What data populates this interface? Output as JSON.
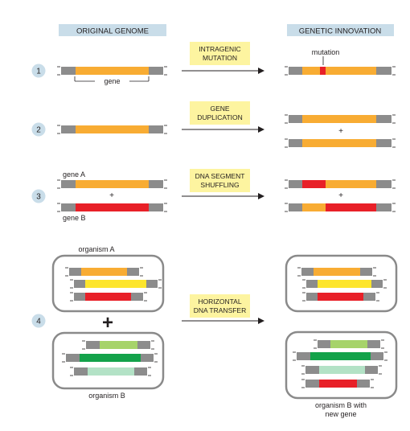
{
  "headers": {
    "original": "ORIGINAL GENOME",
    "innovation": "GENETIC INNOVATION"
  },
  "steps": {
    "s1": {
      "number": "1",
      "label_line1": "INTRAGENIC",
      "label_line2": "MUTATION"
    },
    "s2": {
      "number": "2",
      "label_line1": "GENE",
      "label_line2": "DUPLICATION"
    },
    "s3": {
      "number": "3",
      "label_line1": "DNA SEGMENT",
      "label_line2": "SHUFFLING"
    },
    "s4": {
      "number": "4",
      "label_line1": "HORIZONTAL",
      "label_line2": "DNA TRANSFER"
    }
  },
  "labels": {
    "mutation": "mutation",
    "gene": "gene",
    "plus": "+",
    "big_plus": "+",
    "gene_a": "gene A",
    "gene_b": "gene B",
    "organism_a": "organism A",
    "organism_b": "organism B",
    "organism_b_new_line1": "organism B with",
    "organism_b_new_line2": "new gene"
  },
  "colors": {
    "header_bg": "#c9dde9",
    "label_box": "#fdf4a0",
    "circle": "#c9dde9",
    "dna_gray": "#8c8c8c",
    "orange": "#f8ac33",
    "red": "#e82028",
    "yellow": "#fde52c",
    "light_green": "#a6d36a",
    "green": "#13a24a",
    "pale_green": "#b3e2c6",
    "arrow": "#231f20",
    "text": "#231f20",
    "organism_outline": "#8a8a8a"
  }
}
